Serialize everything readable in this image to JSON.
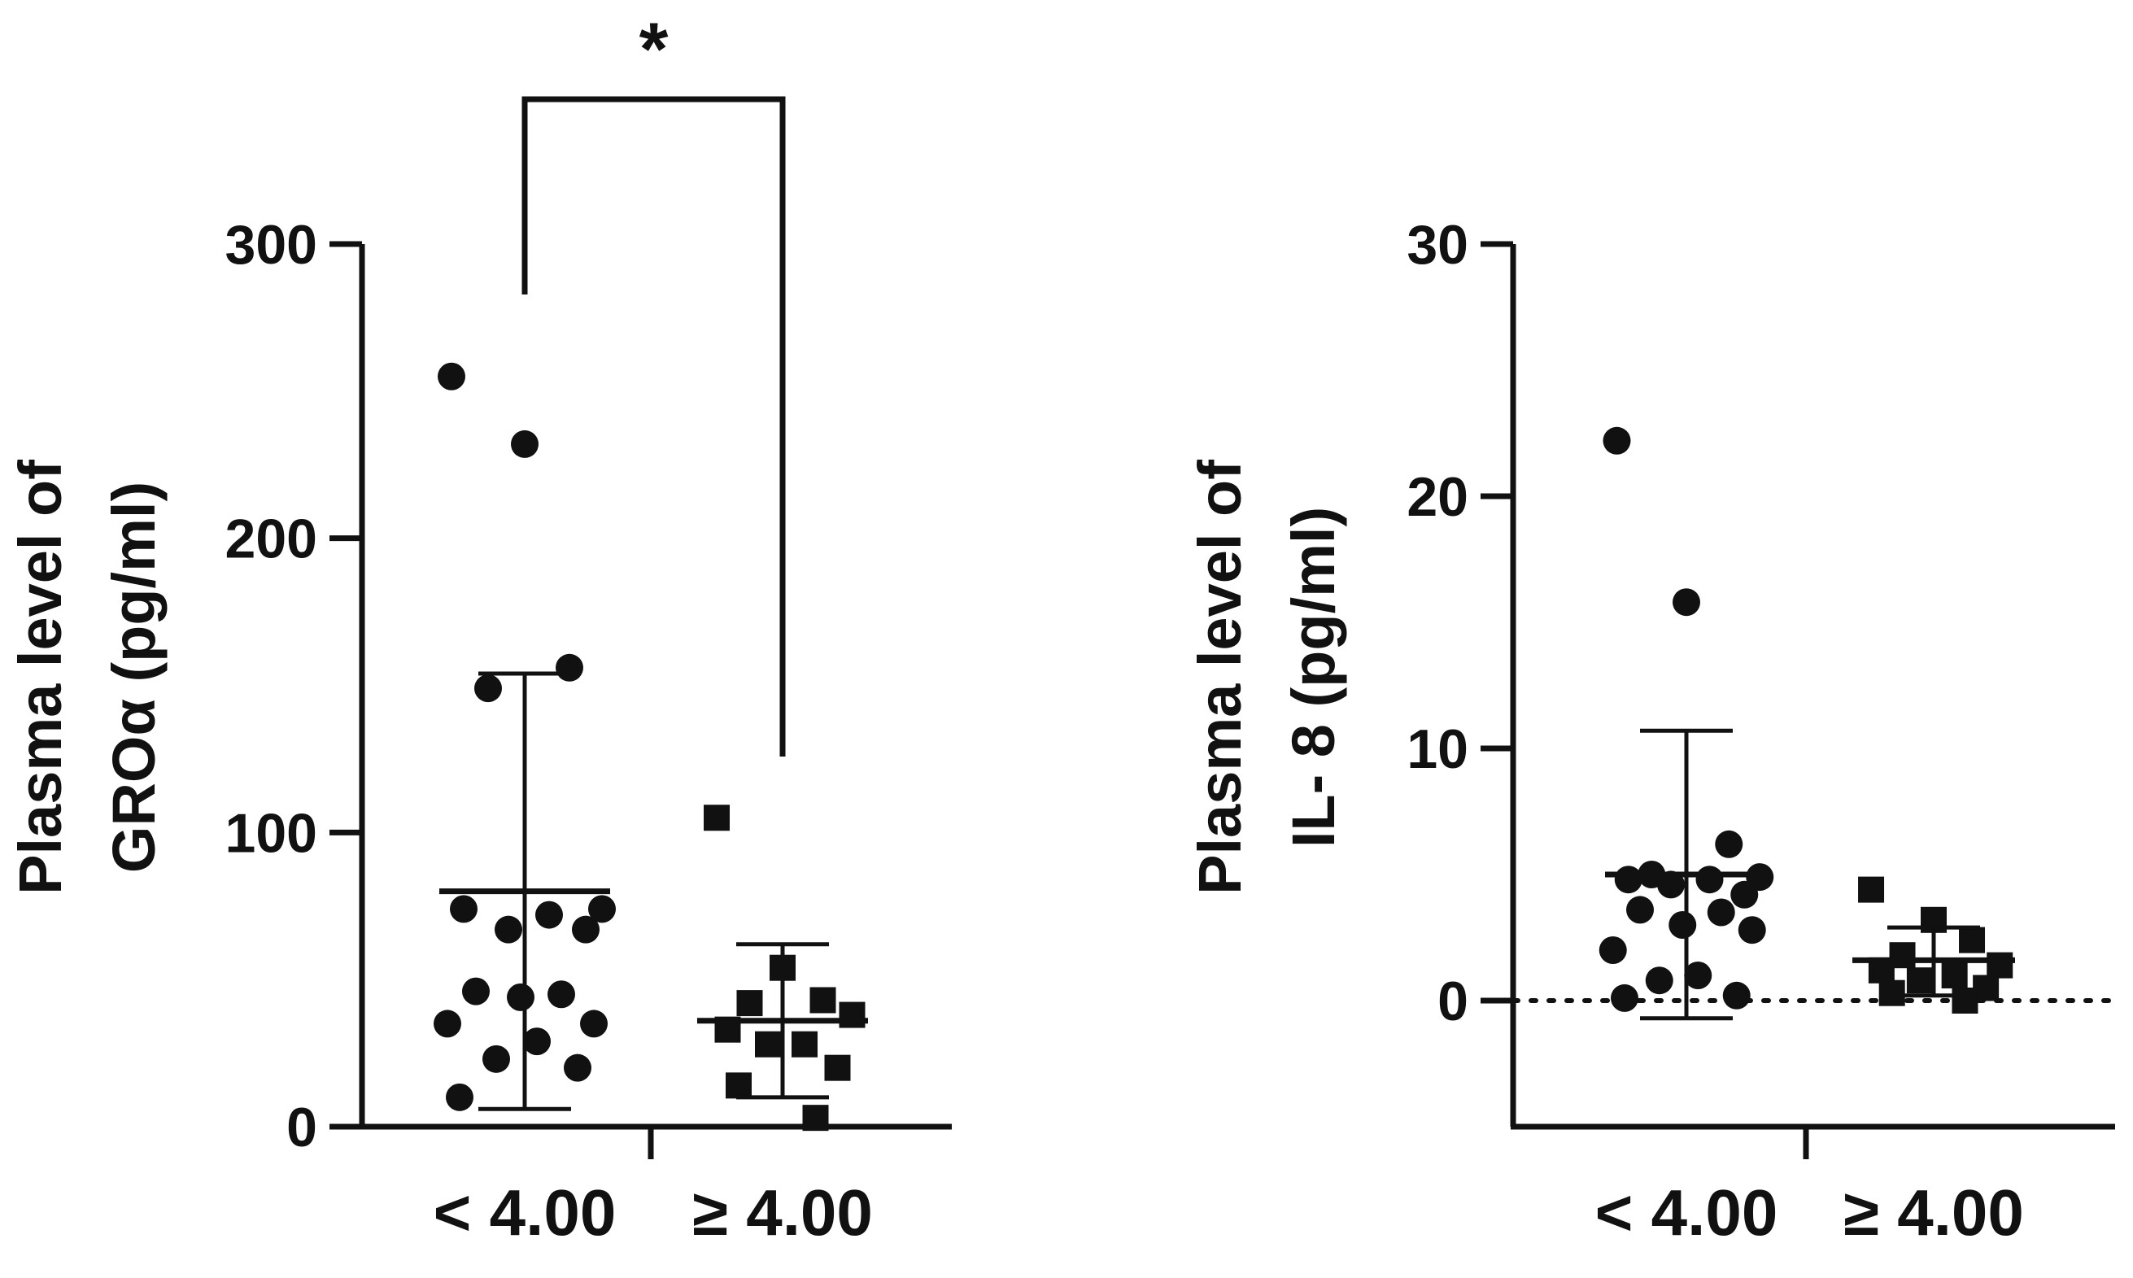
{
  "chart_data": [
    {
      "type": "scatter",
      "title": "",
      "xlabel": "",
      "ylabel": [
        "Plasma level of",
        "GROα (pg/ml)"
      ],
      "categories": [
        "< 4.00",
        "≥ 4.00"
      ],
      "yticks": [
        0,
        100,
        200,
        300
      ],
      "ylim": [
        0,
        300
      ],
      "grid": false,
      "legend": "none",
      "significance": {
        "label": "*",
        "between": [
          "< 4.00",
          "≥ 4.00"
        ]
      },
      "series": [
        {
          "category": "< 4.00",
          "marker": "circle",
          "values": [
            255,
            232,
            156,
            149,
            74,
            74,
            72,
            67,
            67,
            46,
            45,
            44,
            35,
            35,
            29,
            23,
            20,
            10
          ],
          "mean": 80,
          "error_low": 6,
          "error_high": 154
        },
        {
          "category": "≥ 4.00",
          "marker": "square",
          "values": [
            105,
            54,
            43,
            42,
            38,
            33,
            28,
            28,
            20,
            14,
            3
          ],
          "mean": 36,
          "error_low": 10,
          "error_high": 62
        }
      ]
    },
    {
      "type": "scatter",
      "title": "",
      "xlabel": "",
      "ylabel": [
        "Plasma level of",
        "IL- 8 (pg/ml)"
      ],
      "categories": [
        "< 4.00",
        "≥ 4.00"
      ],
      "yticks": [
        0,
        10,
        20,
        30
      ],
      "ylim": [
        -5,
        30
      ],
      "zero_line": "dotted",
      "grid": false,
      "legend": "none",
      "series": [
        {
          "category": "< 4.00",
          "marker": "circle",
          "values": [
            22.2,
            15.8,
            6.2,
            5.0,
            4.9,
            4.8,
            4.8,
            4.6,
            4.2,
            3.6,
            3.5,
            3.0,
            2.8,
            2.0,
            1.0,
            0.8,
            0.2,
            0.1
          ],
          "mean": 5.0,
          "error_low": -0.7,
          "error_high": 10.7
        },
        {
          "category": "≥ 4.00",
          "marker": "square",
          "values": [
            4.4,
            3.2,
            2.4,
            1.8,
            1.4,
            1.2,
            1.0,
            0.8,
            0.5,
            0.3,
            0.0
          ],
          "mean": 1.6,
          "error_low": 0.2,
          "error_high": 2.9
        }
      ]
    }
  ]
}
